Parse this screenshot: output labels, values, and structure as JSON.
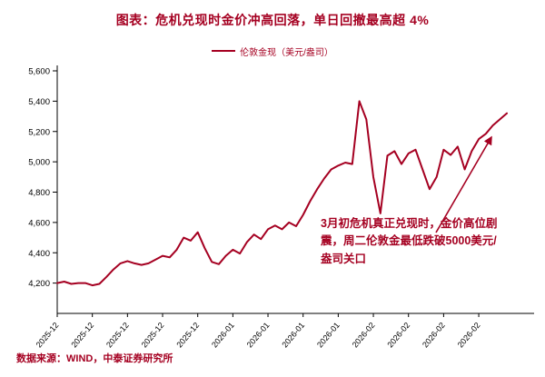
{
  "title": "图表：危机兑现时金价冲高回落，单日回撤最高超 4%",
  "legend": {
    "label": "伦敦金现（美元/盎司）"
  },
  "annotation": {
    "text": "3月初危机真正兑现时，金价高位剧震，周二伦敦金最低跌破5000美元/盎司关口"
  },
  "footer": {
    "source": "数据来源：WIND，中泰证券研究所"
  },
  "colors": {
    "accent": "#A50021",
    "axis": "#000000"
  },
  "chart_data": {
    "type": "line",
    "title": "危机兑现时金价冲高回落，单日回撤最高超 4%",
    "xlabel": "",
    "ylabel": "",
    "legend_position": "top-center",
    "grid": false,
    "ylim": [
      4000,
      5600
    ],
    "y_ticks": [
      4200,
      4400,
      4600,
      4800,
      5000,
      5200,
      5400,
      5600
    ],
    "x_tick_labels": [
      "2025-12",
      "2025-12",
      "2025-12",
      "2025-12",
      "2025-12",
      "2026-01",
      "2026-01",
      "2026-01",
      "2026-01",
      "2026-02",
      "2026-02",
      "2026-02",
      "2026-02"
    ],
    "tick_every": 5,
    "series": [
      {
        "name": "伦敦金现（美元/盎司）",
        "values": [
          4200,
          4210,
          4195,
          4200,
          4200,
          4185,
          4195,
          4240,
          4290,
          4330,
          4345,
          4330,
          4320,
          4330,
          4355,
          4380,
          4370,
          4420,
          4500,
          4480,
          4535,
          4430,
          4340,
          4325,
          4380,
          4420,
          4395,
          4470,
          4520,
          4490,
          4555,
          4580,
          4555,
          4600,
          4575,
          4650,
          4740,
          4820,
          4890,
          4950,
          4975,
          4995,
          4985,
          5400,
          5280,
          4900,
          4660,
          5040,
          5070,
          4985,
          5055,
          5080,
          4950,
          4820,
          4900,
          5080,
          5045,
          5100,
          4950,
          5070,
          5150,
          5185,
          5240,
          5280,
          5320
        ]
      }
    ]
  }
}
